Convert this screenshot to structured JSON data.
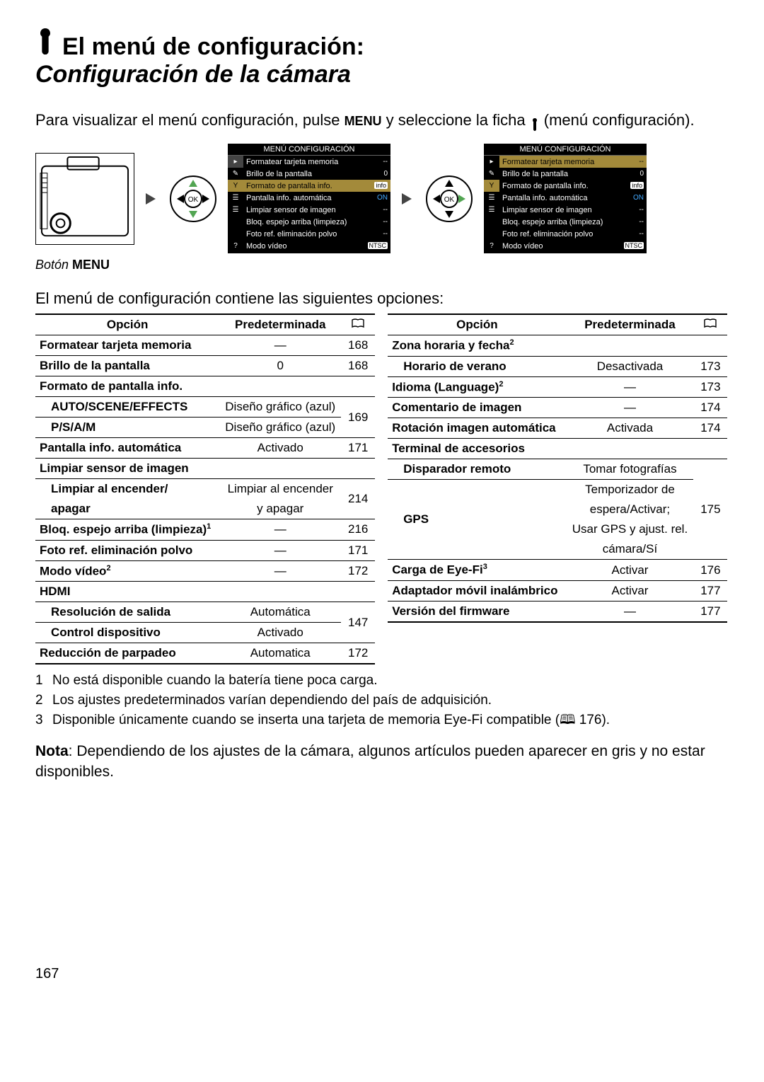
{
  "title": "El menú de configuración:",
  "subtitle": "Configuración de la cámara",
  "intro_part1": "Para visualizar el menú configuración, pulse ",
  "intro_menu": "MENU",
  "intro_part2": " y seleccione la ficha ",
  "intro_part3": " (menú configuración).",
  "boton_caption_prefix": "Botón ",
  "boton_caption_menu": "MENU",
  "options_intro": "El menú de configuración contiene las siguientes opciones:",
  "menu_screenshot": {
    "title": "MENÚ CONFIGURACIÓN",
    "rows": [
      {
        "label": "Formatear tarjeta memoria",
        "val": "--"
      },
      {
        "label": "Brillo de la pantalla",
        "val": "0"
      },
      {
        "label": "Formato de pantalla info.",
        "val": "info"
      },
      {
        "label": "Pantalla info. automática",
        "val": "ON"
      },
      {
        "label": "Limpiar sensor de imagen",
        "val": "--"
      },
      {
        "label": "Bloq. espejo arriba (limpieza)",
        "val": "--"
      },
      {
        "label": "Foto ref. eliminación polvo",
        "val": "--"
      },
      {
        "label": "Modo vídeo",
        "val": "NTSC"
      }
    ]
  },
  "left_header": {
    "opt": "Opción",
    "def": "Predeterminada"
  },
  "right_header": {
    "opt": "Opción",
    "def": "Predeterminada"
  },
  "left_rows": [
    {
      "opt": "Formatear tarjeta memoria",
      "def": "—",
      "pg": "168",
      "type": "row"
    },
    {
      "opt": "Brillo de la pantalla",
      "def": "0",
      "pg": "168",
      "type": "row"
    },
    {
      "opt": "Formato de pantalla info.",
      "type": "section"
    },
    {
      "opt": "AUTO/SCENE/EFFECTS",
      "def": "Diseño gráfico (azul)",
      "pg": "169",
      "type": "sub",
      "rowspan_pg": 2
    },
    {
      "opt": "P/S/A/M",
      "def": "Diseño gráfico (azul)",
      "type": "sub"
    },
    {
      "opt": "Pantalla info. automática",
      "def": "Activado",
      "pg": "171",
      "type": "row"
    },
    {
      "opt": "Limpiar sensor de imagen",
      "type": "section"
    },
    {
      "opt": "Limpiar al encender/apagar",
      "def": "Limpiar al encender y apagar",
      "pg": "214",
      "type": "sub-tall"
    },
    {
      "opt": "Bloq. espejo arriba (limpieza)",
      "sup": "1",
      "def": "—",
      "pg": "216",
      "type": "row"
    },
    {
      "opt": "Foto ref. eliminación polvo",
      "def": "—",
      "pg": "171",
      "type": "row"
    },
    {
      "opt": "Modo vídeo",
      "sup": "2",
      "def": "—",
      "pg": "172",
      "type": "row"
    },
    {
      "opt": "HDMI",
      "type": "section"
    },
    {
      "opt": "Resolución de salida",
      "def": "Automática",
      "pg": "147",
      "type": "sub",
      "rowspan_pg": 2
    },
    {
      "opt": "Control dispositivo",
      "def": "Activado",
      "type": "sub"
    },
    {
      "opt": "Reducción de parpadeo",
      "def": "Automatica",
      "pg": "172",
      "type": "row"
    }
  ],
  "right_rows": [
    {
      "opt": "Zona horaria y fecha",
      "sup": "2",
      "type": "section"
    },
    {
      "opt": "Horario de verano",
      "def": "Desactivada",
      "pg": "173",
      "type": "sub"
    },
    {
      "opt": "Idioma (Language)",
      "sup": "2",
      "def": "—",
      "pg": "173",
      "type": "row"
    },
    {
      "opt": "Comentario de imagen",
      "def": "—",
      "pg": "174",
      "type": "row"
    },
    {
      "opt": "Rotación imagen automática",
      "def": "Activada",
      "pg": "174",
      "type": "row"
    },
    {
      "opt": "Terminal de accesorios",
      "type": "section"
    },
    {
      "opt": "Disparador remoto",
      "def": "Tomar fotografías",
      "pg": "",
      "type": "sub",
      "nb": true
    },
    {
      "opt": "GPS",
      "def": "Temporizador de espera/Activar; Usar GPS y ajust. rel. cámara/Sí",
      "pg": "175",
      "type": "sub-tall3"
    },
    {
      "opt": "Carga de Eye-Fi",
      "sup": "3",
      "def": "Activar",
      "pg": "176",
      "type": "row"
    },
    {
      "opt": "Adaptador móvil inalámbrico",
      "def": "Activar",
      "pg": "177",
      "type": "row"
    },
    {
      "opt": "Versión del firmware",
      "def": "—",
      "pg": "177",
      "type": "row"
    }
  ],
  "footnotes": [
    {
      "n": "1",
      "t": "No está disponible cuando la batería tiene poca carga."
    },
    {
      "n": "2",
      "t": "Los ajustes predeterminados varían dependiendo del país de adquisición."
    },
    {
      "n": "3",
      "t": "Disponible únicamente cuando se inserta una tarjeta de memoria Eye-Fi compatible (🕮 176)."
    }
  ],
  "nota_label": "Nota",
  "nota_text": ": Dependiendo de los ajustes de la cámara, algunos artículos pueden aparecer en gris y no estar disponibles.",
  "page_number": "167"
}
